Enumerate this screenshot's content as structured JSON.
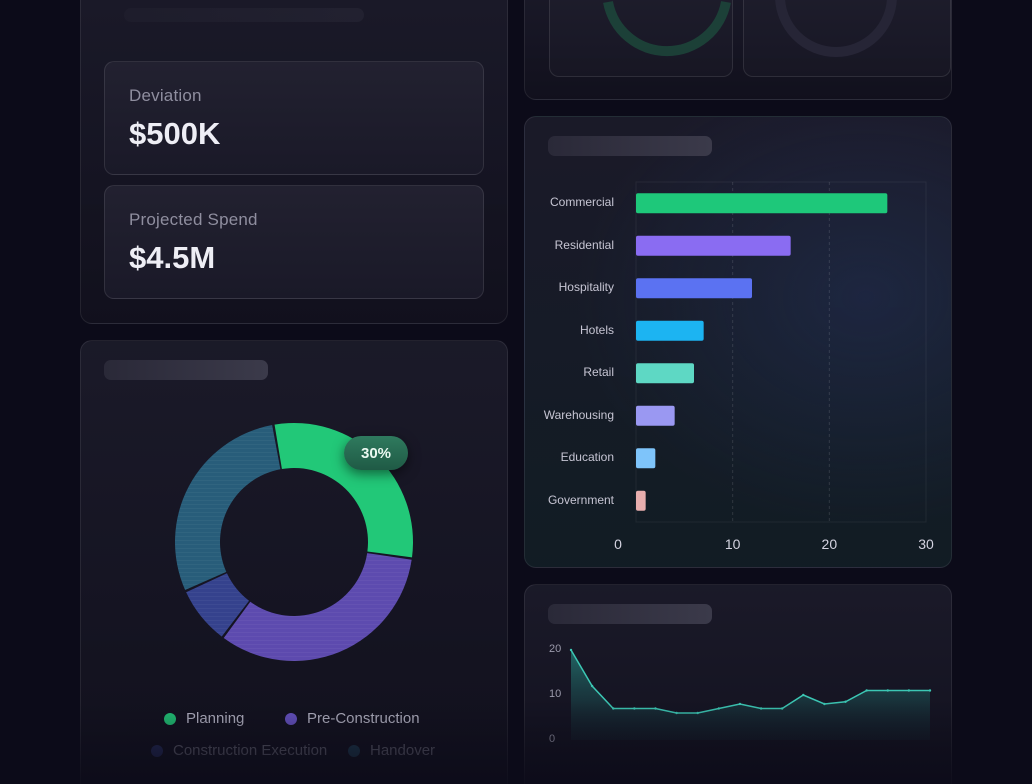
{
  "kpis": {
    "deviation": {
      "label": "Deviation",
      "value": "$500K"
    },
    "projected": {
      "label": "Projected Spend",
      "value": "$4.5M"
    }
  },
  "donut": {
    "badge": "30%",
    "legend": [
      {
        "name": "Planning",
        "color": "#22c878"
      },
      {
        "name": "Pre-Construction",
        "color": "#6a55c8"
      },
      {
        "name": "Construction Execution",
        "color": "#3b4aa0"
      },
      {
        "name": "Handover",
        "color": "#2b6a8a"
      }
    ]
  },
  "chart_data": [
    {
      "type": "bar",
      "orientation": "horizontal",
      "categories": [
        "Commercial",
        "Residential",
        "Hospitality",
        "Hotels",
        "Retail",
        "Warehousing",
        "Education",
        "Government"
      ],
      "values": [
        26,
        16,
        12,
        7,
        6,
        4,
        2,
        1
      ],
      "colors": [
        "#1ec87a",
        "#8a6cf2",
        "#5b72f2",
        "#1cb4f2",
        "#5ed8c4",
        "#9a98f2",
        "#7ec4fa",
        "#e8aeae"
      ],
      "xticks": [
        "0",
        "10",
        "20",
        "30"
      ],
      "xlim": [
        0,
        30
      ],
      "grid": true
    },
    {
      "type": "pie",
      "donut": true,
      "categories": [
        "Planning",
        "Pre-Construction",
        "Construction Execution",
        "Handover"
      ],
      "values": [
        30,
        33,
        8,
        29
      ]
    },
    {
      "type": "area",
      "x": [
        1,
        2,
        3,
        4,
        5,
        6,
        7,
        8,
        9,
        10,
        11,
        12,
        13,
        14,
        15,
        16,
        17,
        18
      ],
      "values": [
        20,
        12,
        7,
        7,
        7,
        6,
        6,
        7,
        8,
        7,
        7,
        10,
        8,
        8.5,
        11,
        11,
        11,
        11
      ],
      "yticks": [
        "20",
        "10",
        "0"
      ],
      "ylim": [
        0,
        20
      ]
    }
  ]
}
